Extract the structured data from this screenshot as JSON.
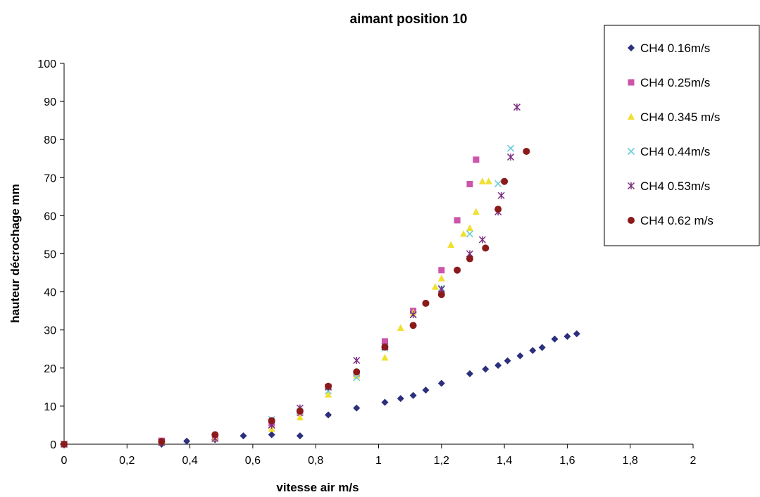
{
  "chart_data": {
    "type": "scatter",
    "title": "aimant position 10",
    "xlabel": "vitesse air m/s",
    "ylabel": "hauteur décrochage mm",
    "xlim": [
      0,
      2
    ],
    "ylim": [
      0,
      100
    ],
    "x_ticks": [
      0,
      0.2,
      0.4,
      0.6,
      0.8,
      1,
      1.2,
      1.4,
      1.6,
      1.8,
      2
    ],
    "x_tick_labels": [
      "0",
      "0,2",
      "0,4",
      "0,6",
      "0,8",
      "1",
      "1,2",
      "1,4",
      "1,6",
      "1,8",
      "2"
    ],
    "y_ticks": [
      0,
      10,
      20,
      30,
      40,
      50,
      60,
      70,
      80,
      90,
      100
    ],
    "y_tick_labels": [
      "0",
      "10",
      "20",
      "30",
      "40",
      "50",
      "60",
      "70",
      "80",
      "90",
      "100"
    ],
    "grid": false,
    "legend_position": "top-right",
    "series": [
      {
        "name": "CH4 0.16m/s",
        "marker": "diamond",
        "color": "#2b2f7d",
        "points": [
          [
            0,
            0
          ],
          [
            0.31,
            0
          ],
          [
            0.39,
            0.8
          ],
          [
            0.48,
            1.2
          ],
          [
            0.57,
            2.2
          ],
          [
            0.66,
            2.5
          ],
          [
            0.75,
            2.2
          ],
          [
            0.84,
            7.7
          ],
          [
            0.93,
            9.5
          ],
          [
            1.02,
            11
          ],
          [
            1.07,
            12
          ],
          [
            1.11,
            12.8
          ],
          [
            1.15,
            14.2
          ],
          [
            1.2,
            16
          ],
          [
            1.29,
            18.5
          ],
          [
            1.34,
            19.7
          ],
          [
            1.38,
            20.7
          ],
          [
            1.41,
            21.9
          ],
          [
            1.45,
            23.2
          ],
          [
            1.49,
            24.6
          ],
          [
            1.52,
            25.4
          ],
          [
            1.56,
            27.6
          ],
          [
            1.6,
            28.3
          ],
          [
            1.63,
            29
          ]
        ]
      },
      {
        "name": "CH4 0.25m/s",
        "marker": "square",
        "color": "#cc55aa",
        "points": [
          [
            0,
            0
          ],
          [
            0.31,
            0.9
          ],
          [
            0.48,
            1.5
          ],
          [
            0.66,
            5.5
          ],
          [
            0.75,
            8.2
          ],
          [
            0.84,
            15
          ],
          [
            0.93,
            18.5
          ],
          [
            1.02,
            27
          ],
          [
            1.11,
            35
          ],
          [
            1.2,
            45.7
          ],
          [
            1.25,
            58.8
          ],
          [
            1.29,
            68.3
          ],
          [
            1.31,
            74.7
          ]
        ]
      },
      {
        "name": "CH4 0.345 m/s",
        "marker": "triangle",
        "color": "#f0e030",
        "points": [
          [
            0,
            0
          ],
          [
            0.31,
            0.5
          ],
          [
            0.48,
            1.5
          ],
          [
            0.66,
            4
          ],
          [
            0.75,
            7
          ],
          [
            0.84,
            13
          ],
          [
            0.93,
            18
          ],
          [
            1.02,
            22.7
          ],
          [
            1.07,
            30.5
          ],
          [
            1.11,
            34.5
          ],
          [
            1.18,
            41.3
          ],
          [
            1.2,
            43.5
          ],
          [
            1.23,
            52.3
          ],
          [
            1.27,
            55.2
          ],
          [
            1.29,
            56.7
          ],
          [
            1.31,
            61
          ],
          [
            1.33,
            69
          ],
          [
            1.35,
            69
          ]
        ]
      },
      {
        "name": "CH4 0.44m/s",
        "marker": "x",
        "color": "#6ccbd6",
        "points": [
          [
            0,
            0
          ],
          [
            0.31,
            0.5
          ],
          [
            0.48,
            1.5
          ],
          [
            0.66,
            6.5
          ],
          [
            0.75,
            8.5
          ],
          [
            0.84,
            14
          ],
          [
            0.93,
            17.5
          ],
          [
            1.02,
            25.2
          ],
          [
            1.11,
            34
          ],
          [
            1.2,
            41
          ],
          [
            1.29,
            55.2
          ],
          [
            1.38,
            68.4
          ],
          [
            1.42,
            77.7
          ]
        ]
      },
      {
        "name": "CH4 0.53m/s",
        "marker": "star",
        "color": "#7b2d7f",
        "points": [
          [
            0,
            0
          ],
          [
            0.31,
            0.5
          ],
          [
            0.48,
            1.5
          ],
          [
            0.66,
            5
          ],
          [
            0.75,
            9.5
          ],
          [
            0.84,
            15
          ],
          [
            0.93,
            22
          ],
          [
            1.02,
            25.6
          ],
          [
            1.11,
            34
          ],
          [
            1.2,
            40.7
          ],
          [
            1.29,
            50
          ],
          [
            1.33,
            53.7
          ],
          [
            1.38,
            61
          ],
          [
            1.39,
            65.3
          ],
          [
            1.42,
            75.4
          ],
          [
            1.44,
            88.5
          ]
        ]
      },
      {
        "name": "CH4 0.62 m/s",
        "marker": "circle",
        "color": "#8b1a1a",
        "points": [
          [
            0,
            0
          ],
          [
            0.31,
            0.7
          ],
          [
            0.48,
            2.5
          ],
          [
            0.66,
            6.2
          ],
          [
            0.75,
            8.7
          ],
          [
            0.84,
            15.2
          ],
          [
            0.93,
            19
          ],
          [
            1.02,
            25.5
          ],
          [
            1.11,
            31.2
          ],
          [
            1.15,
            37
          ],
          [
            1.2,
            39.3
          ],
          [
            1.25,
            45.7
          ],
          [
            1.29,
            48.7
          ],
          [
            1.34,
            51.5
          ],
          [
            1.38,
            61.7
          ],
          [
            1.4,
            69
          ],
          [
            1.47,
            76.9
          ]
        ]
      }
    ]
  }
}
